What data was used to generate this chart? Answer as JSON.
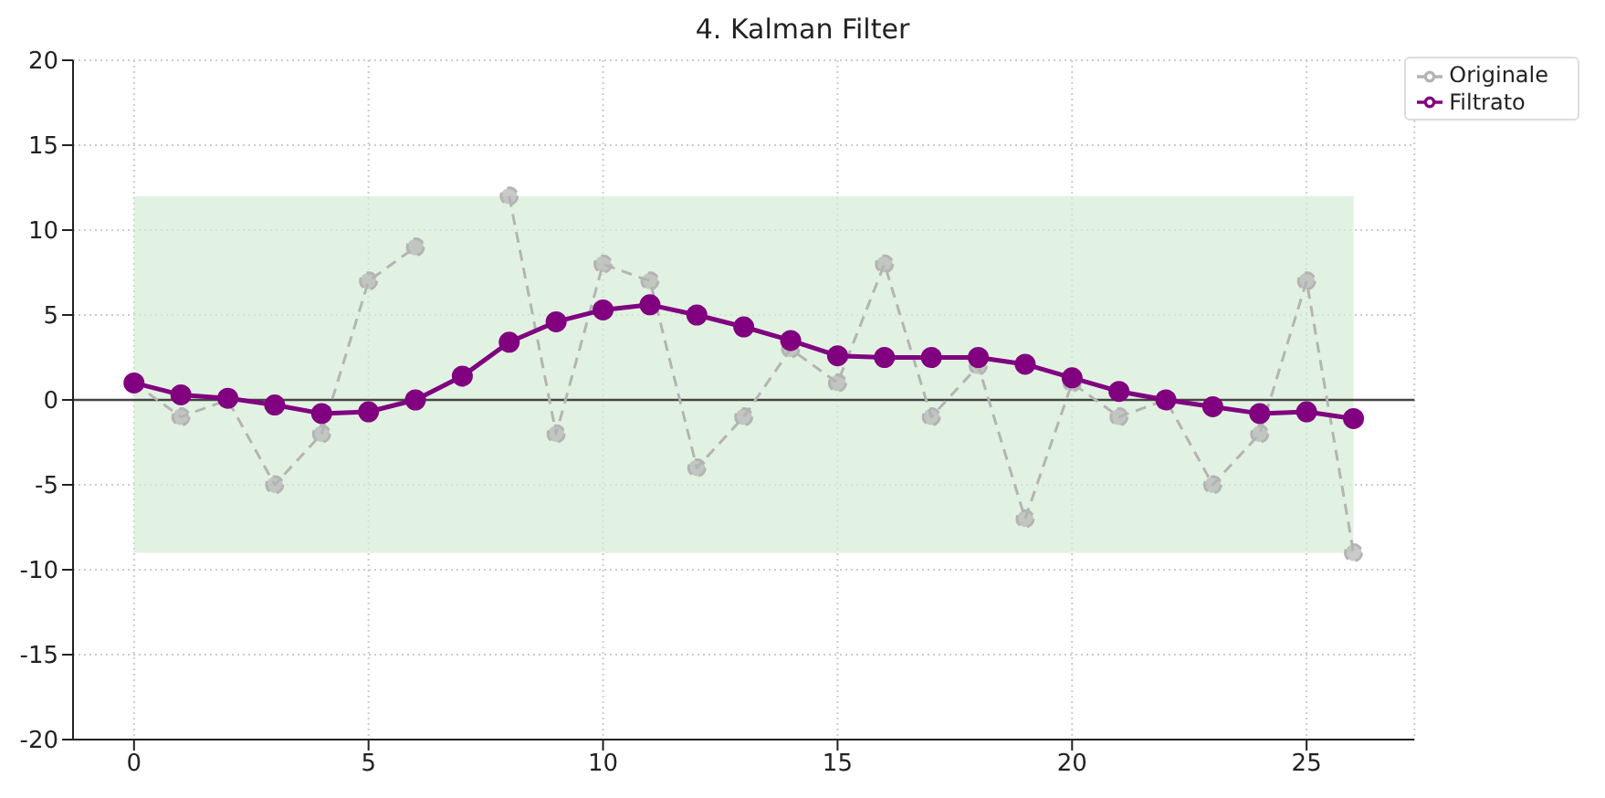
{
  "chart_data": {
    "type": "line",
    "title": "4. Kalman Filter",
    "x": [
      0,
      1,
      2,
      3,
      4,
      5,
      6,
      7,
      8,
      9,
      10,
      11,
      12,
      13,
      14,
      15,
      16,
      17,
      18,
      19,
      20,
      21,
      22,
      23,
      24,
      25,
      26
    ],
    "series": [
      {
        "name": "Originale",
        "color": "#b4b4b4",
        "line_style": "dashed",
        "values": [
          1,
          -1,
          0,
          -5,
          -2,
          7,
          9,
          null,
          12,
          -2,
          8,
          7,
          -4,
          -1,
          3,
          1,
          8,
          -1,
          2,
          -7,
          1,
          -1,
          0,
          -5,
          -2,
          7,
          -9
        ]
      },
      {
        "name": "Filtrato",
        "color": "#800080",
        "line_style": "solid",
        "values": [
          1,
          0.3,
          0.1,
          -0.3,
          -0.8,
          -0.7,
          0,
          1.4,
          3.4,
          4.6,
          5.3,
          5.6,
          5.0,
          4.3,
          3.5,
          2.6,
          2.5,
          2.5,
          2.5,
          2.1,
          1.3,
          0.5,
          0,
          -0.4,
          -0.8,
          -0.7,
          -1.1
        ]
      }
    ],
    "xlim": [
      -1.3,
      27.3
    ],
    "xticks": [
      0,
      5,
      10,
      15,
      20,
      25
    ],
    "ylim": [
      -20,
      20
    ],
    "yticks": [
      -20,
      -15,
      -10,
      -5,
      0,
      5,
      10,
      15,
      20
    ],
    "ref_lines": [
      {
        "axis": "y",
        "value": 0,
        "color": "#444444"
      }
    ],
    "bands": [
      {
        "axis": "y",
        "from": -9,
        "to": 12,
        "color": "#d6ecd6"
      }
    ],
    "grid": true,
    "legend": "top right",
    "marker": "circle"
  }
}
